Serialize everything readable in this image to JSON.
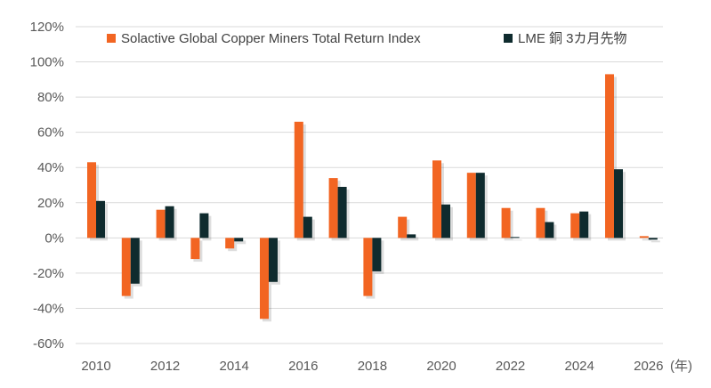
{
  "chart_data": {
    "type": "bar",
    "title": "",
    "xlabel": "",
    "ylabel": "",
    "x_unit": "(年)",
    "ylim": [
      -60,
      120
    ],
    "yticks": [
      -60,
      -40,
      -20,
      0,
      20,
      40,
      60,
      80,
      100,
      120
    ],
    "ytick_labels": [
      "-60%",
      "-40%",
      "-20%",
      "0%",
      "20%",
      "40%",
      "60%",
      "80%",
      "100%",
      "120%"
    ],
    "xtick_labels": [
      "2010",
      "2012",
      "2014",
      "2016",
      "2018",
      "2020",
      "2022",
      "2024",
      "2026"
    ],
    "categories": [
      2010,
      2011,
      2012,
      2013,
      2014,
      2015,
      2016,
      2017,
      2018,
      2019,
      2020,
      2021,
      2022,
      2023,
      2024,
      2025,
      2026
    ],
    "grid": "horizontal",
    "legend_position": "top",
    "series": [
      {
        "name": "Solactive Global Copper Miners Total Return Index",
        "color": "#F26522",
        "values": [
          43,
          -33,
          16,
          -12,
          -6,
          -46,
          66,
          34,
          -33,
          12,
          44,
          37,
          17,
          17,
          14,
          93,
          1
        ]
      },
      {
        "name": "LME 銅 3カ月先物",
        "color": "#0F2B2E",
        "values": [
          21,
          -26,
          18,
          14,
          -2,
          -25,
          12,
          29,
          -19,
          2,
          19,
          37,
          0.5,
          9,
          15,
          39,
          -1
        ]
      }
    ]
  }
}
